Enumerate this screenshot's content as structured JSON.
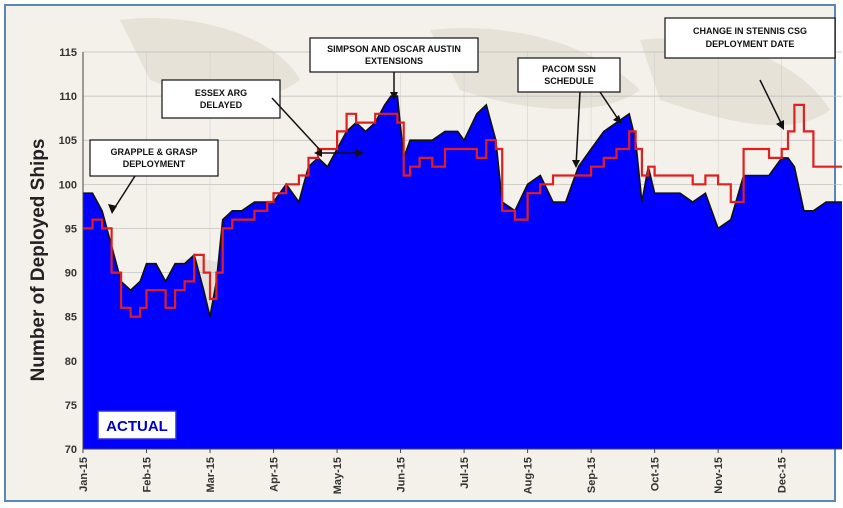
{
  "chart_data": {
    "type": "area",
    "title": "",
    "xlabel": "",
    "ylabel": "Number of Deployed Ships",
    "ylim": [
      70,
      115
    ],
    "yticks": [
      70,
      75,
      80,
      85,
      90,
      95,
      100,
      105,
      110,
      115
    ],
    "x_tick_labels": [
      "Jan-15",
      "Feb-15",
      "Mar-15",
      "Apr-15",
      "May-15",
      "Jun-15",
      "Jul-15",
      "Aug-15",
      "Sep-15",
      "Oct-15",
      "Nov-15",
      "Dec-15"
    ],
    "x_range_months": [
      0,
      11.95
    ],
    "grid": true,
    "series": [
      {
        "name": "ACTUAL",
        "style": "filled-area",
        "color": "#0000ff",
        "x": [
          0,
          0.15,
          0.3,
          0.45,
          0.6,
          0.75,
          0.9,
          1.0,
          1.15,
          1.3,
          1.45,
          1.6,
          1.75,
          1.9,
          2.0,
          2.1,
          2.2,
          2.35,
          2.5,
          2.7,
          2.9,
          3.0,
          3.2,
          3.4,
          3.55,
          3.7,
          3.85,
          4.0,
          4.15,
          4.3,
          4.45,
          4.6,
          4.75,
          4.85,
          4.95,
          5.05,
          5.15,
          5.3,
          5.5,
          5.7,
          5.9,
          6.0,
          6.2,
          6.35,
          6.5,
          6.6,
          6.8,
          7.0,
          7.2,
          7.4,
          7.6,
          7.8,
          8.0,
          8.2,
          8.4,
          8.6,
          8.7,
          8.8,
          8.9,
          9.0,
          9.2,
          9.4,
          9.6,
          9.8,
          10.0,
          10.2,
          10.4,
          10.6,
          10.8,
          11.0,
          11.1,
          11.2,
          11.35,
          11.5,
          11.7,
          11.95
        ],
        "values": [
          99,
          99,
          97,
          93,
          89,
          88,
          89,
          91,
          91,
          89,
          91,
          91,
          92,
          88,
          85,
          89,
          96,
          97,
          97,
          98,
          98,
          98,
          100,
          98,
          102,
          103,
          102,
          104,
          106,
          107,
          106,
          107,
          109,
          110,
          110,
          103,
          105,
          105,
          105,
          106,
          106,
          105,
          108,
          109,
          105,
          98,
          97,
          100,
          101,
          98,
          98,
          102,
          104,
          106,
          107,
          108,
          105,
          98,
          102,
          99,
          99,
          99,
          98,
          99,
          95,
          96,
          101,
          101,
          101,
          103,
          103,
          102,
          97,
          97,
          98,
          98
        ]
      },
      {
        "name": "",
        "style": "line",
        "color": "#e02020",
        "x": [
          0,
          0.15,
          0.3,
          0.45,
          0.6,
          0.75,
          0.9,
          1.0,
          1.15,
          1.3,
          1.45,
          1.6,
          1.75,
          1.9,
          2.0,
          2.1,
          2.2,
          2.35,
          2.5,
          2.7,
          2.9,
          3.0,
          3.2,
          3.4,
          3.55,
          3.7,
          3.85,
          4.0,
          4.15,
          4.3,
          4.45,
          4.6,
          4.75,
          4.85,
          4.95,
          5.05,
          5.15,
          5.3,
          5.5,
          5.7,
          5.9,
          6.0,
          6.2,
          6.35,
          6.5,
          6.6,
          6.8,
          7.0,
          7.2,
          7.4,
          7.6,
          7.8,
          8.0,
          8.2,
          8.4,
          8.6,
          8.7,
          8.8,
          8.9,
          9.0,
          9.2,
          9.4,
          9.6,
          9.8,
          10.0,
          10.2,
          10.4,
          10.6,
          10.8,
          11.0,
          11.1,
          11.2,
          11.35,
          11.5,
          11.7,
          11.95
        ],
        "values": [
          95,
          96,
          95,
          90,
          86,
          85,
          86,
          88,
          88,
          86,
          88,
          89,
          92,
          90,
          87,
          90,
          95,
          96,
          96,
          97,
          98,
          99,
          100,
          101,
          103,
          104,
          104,
          106,
          108,
          107,
          107,
          108,
          108,
          108,
          107,
          101,
          102,
          103,
          102,
          104,
          104,
          104,
          103,
          105,
          104,
          97,
          96,
          99,
          100,
          101,
          101,
          101,
          102,
          103,
          104,
          106,
          104,
          101,
          102,
          101,
          101,
          101,
          100,
          101,
          100,
          98,
          104,
          104,
          103,
          104,
          106,
          109,
          106,
          102,
          102,
          102
        ]
      }
    ],
    "annotations": [
      {
        "lines": [
          "GRAPPLE & GRASP",
          "DEPLOYMENT"
        ]
      },
      {
        "lines": [
          "ESSEX ARG",
          "DELAYED"
        ]
      },
      {
        "lines": [
          "SIMPSON AND OSCAR AUSTIN",
          "EXTENSIONS"
        ]
      },
      {
        "lines": [
          "PACOM SSN",
          "SCHEDULE"
        ]
      },
      {
        "lines": [
          "CHANGE IN STENNIS CSG",
          "DEPLOYMENT DATE"
        ]
      }
    ],
    "legend": {
      "label": "ACTUAL",
      "placement": "bottom-left"
    }
  }
}
